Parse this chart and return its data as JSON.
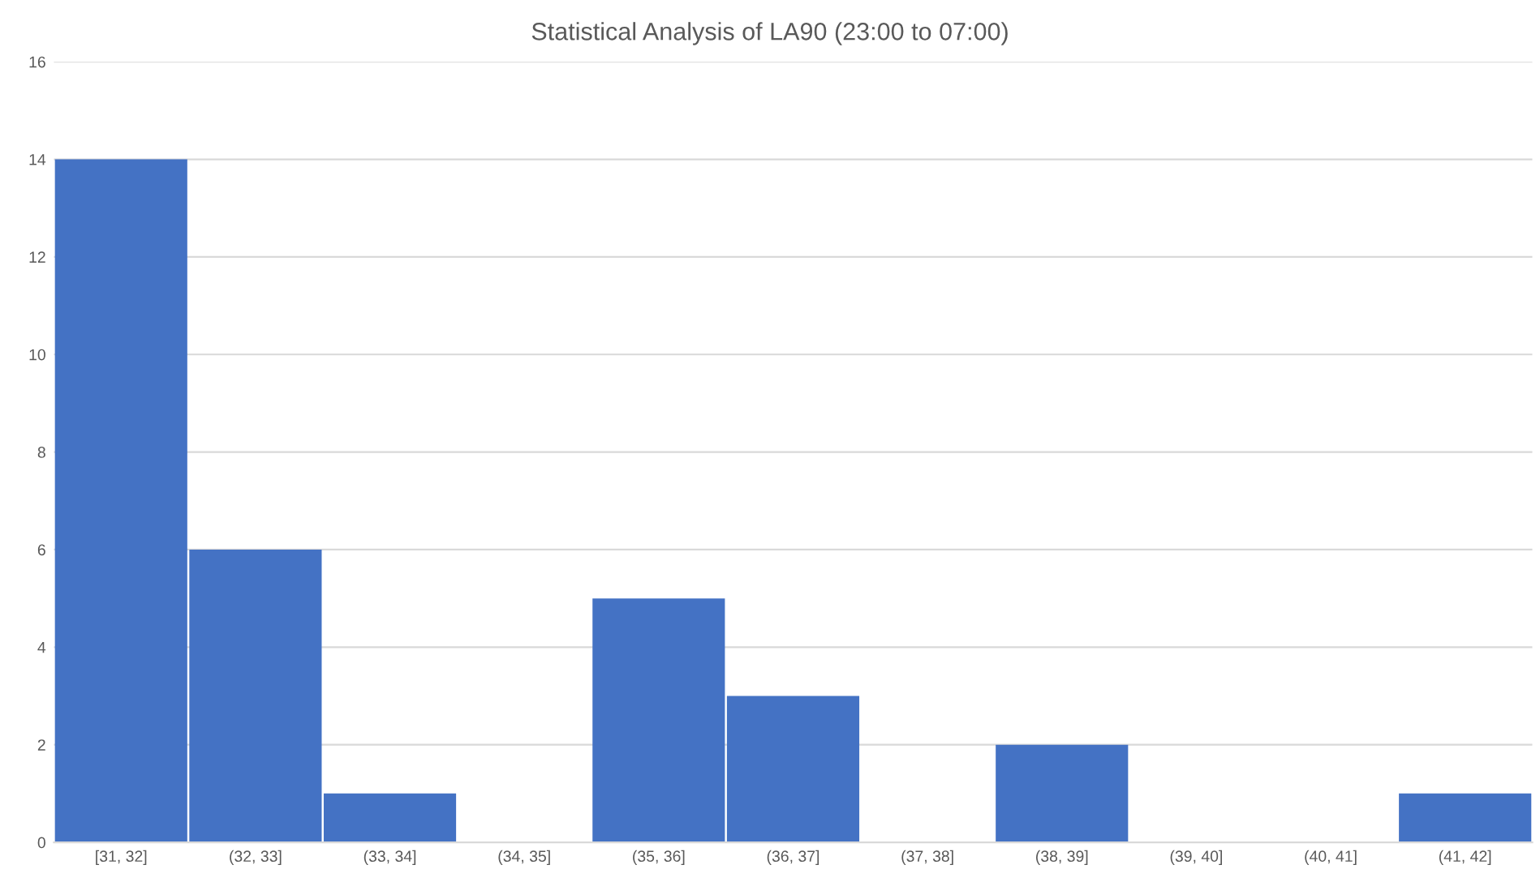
{
  "chart_data": {
    "type": "bar",
    "title": "Statistical Analysis of LA90 (23:00 to 07:00)",
    "categories": [
      "[31, 32]",
      "(32, 33]",
      "(33, 34]",
      "(34, 35]",
      "(35, 36]",
      "(36, 37]",
      "(37, 38]",
      "(38, 39]",
      "(39, 40]",
      "(40, 41]",
      "(41, 42]"
    ],
    "values": [
      14,
      6,
      1,
      0,
      5,
      3,
      0,
      2,
      0,
      0,
      1
    ],
    "color": "#4472c4",
    "ylim": [
      0,
      16
    ],
    "yticks": [
      0,
      2,
      4,
      6,
      8,
      10,
      12,
      14,
      16
    ],
    "grid": "y"
  }
}
